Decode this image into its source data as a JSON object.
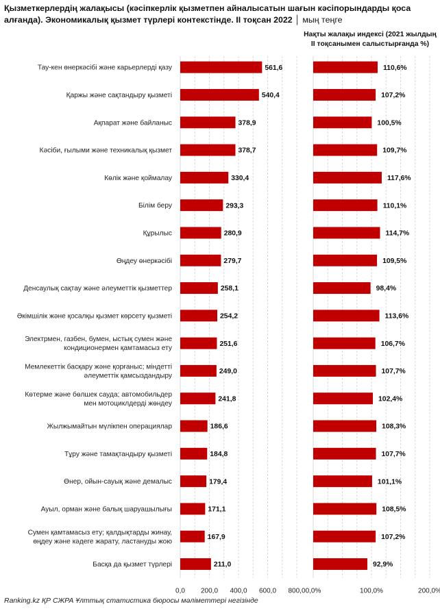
{
  "title_main": "Қызметкерлердің жалақысы (кәсіпкерлік қызметпен айналысатын шағын кәсіпорындарды қоса алғанда). Экономикалық қызмет түрлері контекстінде. II тоқсан 2022 │",
  "title_unit": "мың теңге",
  "right_panel_title": "Нақты жалақы индексі (2021 жылдың II тоқсанымен салыстырғанда %)",
  "source": "Ranking.kz ҚР СЖРА Ұлттық статистика бюросы мәліметтері негізінде",
  "colors": {
    "bar": "#c00000",
    "grid": "#d9d9d9",
    "axis": "#bfbfbf"
  },
  "chart_data": [
    {
      "type": "bar",
      "orientation": "horizontal",
      "categories": [
        [
          "Тау-кен өнеркәсібі және карьерлерді қазу"
        ],
        [
          "Қаржы және сақтандыру қызметі"
        ],
        [
          "Ақпарат және байланыс"
        ],
        [
          "Кәсіби, ғылыми және техникалық қызмет"
        ],
        [
          "Көлік және қоймалау"
        ],
        [
          "Білім беру"
        ],
        [
          "Құрылыс"
        ],
        [
          "Өңдеу өнеркәсібі"
        ],
        [
          "Денсаулық сақтау және әлеуметтік қызметтер"
        ],
        [
          "Әкімшілік және қосалқы қызмет көрсету қызметі"
        ],
        [
          "Электрмен, газбен, бумен, ыстық сумен және",
          "кондиционермен қамтамасыз ету"
        ],
        [
          "Мемлекеттік басқару және қорғаныс; міндетті",
          "әлеуметтік қамсыздандыру"
        ],
        [
          "Көтерме және бөлшек сауда; автомобильдер",
          "мен мотоциклдерді жөндеу"
        ],
        [
          "Жылжымайтын мүлікпен операциялар"
        ],
        [
          "Тұру және тамақтандыру қызметі"
        ],
        [
          "Өнер, ойын-сауық және демалыс"
        ],
        [
          "Ауыл, орман және балық шаруашылығы"
        ],
        [
          "Сумен қамтамасыз ету; қалдықтарды жинау,",
          "өңдеу және кәдеге жарату, ластануды жою"
        ],
        [
          "Басқа да қызмет түрлері"
        ]
      ],
      "values": [
        561.6,
        540.4,
        378.9,
        378.7,
        330.4,
        293.3,
        280.9,
        279.7,
        258.1,
        254.2,
        251.6,
        249.0,
        241.8,
        186.6,
        184.8,
        179.4,
        171.1,
        167.9,
        211.0
      ],
      "value_labels": [
        "561,6",
        "540,4",
        "378,9",
        "378,7",
        "330,4",
        "293,3",
        "280,9",
        "279,7",
        "258,1",
        "254,2",
        "251,6",
        "249,0",
        "241,8",
        "186,6",
        "184,8",
        "179,4",
        "171,1",
        "167,9",
        "211,0"
      ],
      "xlim": [
        0,
        800
      ],
      "ticks": [
        0,
        200,
        400,
        600,
        800
      ],
      "tick_labels": [
        "0,0",
        "200,0",
        "400,0",
        "600,0",
        "800,0"
      ],
      "grid": true
    },
    {
      "type": "bar",
      "orientation": "horizontal",
      "values": [
        110.6,
        107.2,
        100.5,
        109.7,
        117.6,
        110.1,
        114.7,
        109.5,
        98.4,
        113.6,
        106.7,
        107.7,
        102.4,
        108.3,
        107.7,
        101.1,
        108.5,
        107.2,
        92.9
      ],
      "value_labels": [
        "110,6%",
        "107,2%",
        "100,5%",
        "109,7%",
        "117,6%",
        "110,1%",
        "114,7%",
        "109,5%",
        "98,4%",
        "113,6%",
        "106,7%",
        "107,7%",
        "102,4%",
        "108,3%",
        "107,7%",
        "101,1%",
        "108,5%",
        "107,2%",
        "92,9%"
      ],
      "xlim": [
        0,
        200
      ],
      "ticks": [
        0,
        100,
        200
      ],
      "tick_labels": [
        "0,0%",
        "100,0%",
        "200,0%"
      ],
      "grid": true
    }
  ]
}
